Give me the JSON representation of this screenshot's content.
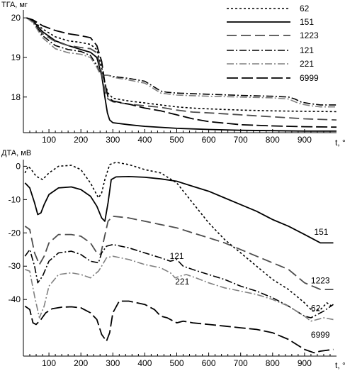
{
  "chart_data": [
    {
      "type": "line",
      "ylabel": "ТГА, мг",
      "xlabel": "t, °C",
      "xlim": [
        20,
        1000
      ],
      "ylim": [
        17.1,
        20.2
      ],
      "xticks": [
        100,
        200,
        300,
        400,
        500,
        600,
        700,
        800,
        900
      ],
      "yticks": [
        18,
        19,
        20
      ],
      "grid": false,
      "legend_position": "top-right",
      "series": [
        {
          "name": "62",
          "color": "#000000",
          "dash": "3,3",
          "width": 1.6,
          "x": [
            30,
            50,
            80,
            120,
            160,
            200,
            230,
            250,
            265,
            275,
            285,
            300,
            350,
            400,
            450,
            500,
            550,
            600,
            700,
            800,
            900,
            1000
          ],
          "y": [
            20.0,
            19.93,
            19.72,
            19.52,
            19.42,
            19.38,
            19.33,
            19.2,
            18.75,
            18.35,
            18.1,
            17.97,
            17.9,
            17.85,
            17.8,
            17.75,
            17.72,
            17.7,
            17.67,
            17.65,
            17.64,
            17.63
          ]
        },
        {
          "name": "151",
          "color": "#000000",
          "dash": "",
          "width": 1.8,
          "x": [
            30,
            50,
            80,
            120,
            160,
            200,
            230,
            250,
            265,
            275,
            283,
            290,
            300,
            350,
            400,
            500,
            600,
            700,
            800,
            900,
            1000
          ],
          "y": [
            20.0,
            19.92,
            19.65,
            19.42,
            19.3,
            19.2,
            19.13,
            19.0,
            18.55,
            18.0,
            17.6,
            17.42,
            17.35,
            17.3,
            17.26,
            17.21,
            17.18,
            17.16,
            17.15,
            17.14,
            17.14
          ]
        },
        {
          "name": "1223",
          "color": "#4d4d4d",
          "dash": "14,6",
          "width": 1.8,
          "x": [
            30,
            50,
            80,
            120,
            160,
            200,
            230,
            250,
            265,
            275,
            285,
            300,
            350,
            400,
            450,
            500,
            550,
            600,
            700,
            800,
            900,
            1000
          ],
          "y": [
            20.0,
            19.9,
            19.6,
            19.4,
            19.3,
            19.25,
            19.22,
            19.12,
            18.6,
            18.15,
            17.95,
            17.88,
            17.82,
            17.78,
            17.74,
            17.67,
            17.62,
            17.6,
            17.55,
            17.5,
            17.45,
            17.42
          ]
        },
        {
          "name": "121",
          "color": "#000000",
          "dash": "10,3,2,3",
          "width": 1.6,
          "x": [
            30,
            50,
            80,
            120,
            160,
            200,
            230,
            250,
            260,
            270,
            285,
            300,
            350,
            400,
            430,
            450,
            470,
            500,
            600,
            700,
            800,
            850,
            870,
            890,
            920,
            950,
            1000
          ],
          "y": [
            20.0,
            19.9,
            19.55,
            19.3,
            19.2,
            19.15,
            19.05,
            18.8,
            18.6,
            18.55,
            18.55,
            18.52,
            18.47,
            18.4,
            18.25,
            18.15,
            18.12,
            18.1,
            18.07,
            18.04,
            18.02,
            18.0,
            17.95,
            17.87,
            17.83,
            17.8,
            17.8
          ]
        },
        {
          "name": "221",
          "color": "#808080",
          "dash": "10,3,2,3",
          "width": 1.6,
          "x": [
            30,
            50,
            80,
            120,
            160,
            200,
            230,
            250,
            260,
            270,
            285,
            300,
            350,
            400,
            430,
            450,
            470,
            500,
            600,
            700,
            800,
            850,
            870,
            890,
            920,
            950,
            1000
          ],
          "y": [
            20.0,
            19.88,
            19.5,
            19.22,
            19.12,
            19.08,
            19.0,
            18.75,
            18.58,
            18.55,
            18.55,
            18.5,
            18.43,
            18.35,
            18.2,
            18.1,
            18.08,
            18.05,
            18.02,
            18.0,
            17.98,
            17.95,
            17.88,
            17.82,
            17.78,
            17.75,
            17.75
          ]
        },
        {
          "name": "6999",
          "color": "#000000",
          "dash": "16,5",
          "width": 1.8,
          "x": [
            30,
            50,
            80,
            120,
            160,
            200,
            230,
            250,
            265,
            275,
            285,
            300,
            350,
            400,
            450,
            500,
            550,
            600,
            700,
            800,
            900,
            1000
          ],
          "y": [
            20.0,
            19.95,
            19.8,
            19.68,
            19.6,
            19.55,
            19.5,
            19.3,
            18.9,
            18.35,
            18.0,
            17.9,
            17.82,
            17.72,
            17.65,
            17.55,
            17.45,
            17.38,
            17.3,
            17.27,
            17.25,
            17.24
          ]
        }
      ]
    },
    {
      "type": "line",
      "ylabel": "ДТА, мВ",
      "xlabel": "t, °C",
      "xlim": [
        20,
        1000
      ],
      "ylim": [
        -57,
        2
      ],
      "xticks": [
        100,
        200,
        300,
        400,
        500,
        600,
        700,
        800,
        900
      ],
      "yticks": [
        0,
        -10,
        -20,
        -30,
        -40
      ],
      "grid": false,
      "annotations": [
        {
          "text": "151",
          "x": 930,
          "y": -20.6
        },
        {
          "text": "1223",
          "x": 920,
          "y": -35.2
        },
        {
          "text": "62",
          "x": 920,
          "y": -43.5
        },
        {
          "text": "121",
          "x": 478,
          "y": -27.8
        },
        {
          "text": "221",
          "x": 495,
          "y": -35.5
        },
        {
          "text": "6999",
          "x": 920,
          "y": -51.5
        }
      ],
      "series": [
        {
          "name": "62",
          "color": "#000000",
          "dash": "3,3",
          "width": 1.6,
          "x": [
            25,
            35,
            45,
            60,
            80,
            100,
            130,
            170,
            200,
            230,
            255,
            265,
            275,
            290,
            310,
            350,
            400,
            450,
            500,
            550,
            600,
            650,
            700,
            750,
            800,
            850,
            900,
            925,
            950,
            970,
            985
          ],
          "y": [
            -2,
            0,
            -1,
            -3,
            -4,
            -2,
            0,
            0.3,
            -1,
            -5,
            -9.5,
            -8,
            -4,
            0.5,
            1.2,
            0.5,
            -1,
            -2,
            -5,
            -11,
            -17,
            -22,
            -26,
            -30,
            -34,
            -37,
            -41,
            -43.5,
            -43,
            -41,
            -42
          ]
        },
        {
          "name": "151",
          "color": "#000000",
          "dash": "",
          "width": 1.8,
          "x": [
            25,
            40,
            55,
            65,
            75,
            85,
            100,
            130,
            170,
            200,
            230,
            250,
            265,
            275,
            285,
            295,
            310,
            350,
            400,
            450,
            500,
            550,
            600,
            650,
            700,
            750,
            800,
            850,
            900,
            950,
            990
          ],
          "y": [
            -5,
            -6.5,
            -11,
            -14.5,
            -14,
            -11.5,
            -8.5,
            -6.5,
            -6.2,
            -7,
            -9,
            -12,
            -15.5,
            -16.5,
            -11,
            -4,
            -3.2,
            -3.1,
            -3.3,
            -3.8,
            -4.5,
            -6,
            -7.5,
            -9.5,
            -11.5,
            -13.5,
            -16,
            -18,
            -20.5,
            -23,
            -23
          ]
        },
        {
          "name": "1223",
          "color": "#4d4d4d",
          "dash": "14,6",
          "width": 1.8,
          "x": [
            25,
            40,
            55,
            70,
            85,
            100,
            130,
            170,
            200,
            230,
            250,
            262,
            272,
            285,
            300,
            350,
            400,
            450,
            500,
            550,
            600,
            650,
            700,
            750,
            800,
            850,
            900,
            950,
            990
          ],
          "y": [
            -18,
            -19,
            -26,
            -29.5,
            -27,
            -23,
            -20.5,
            -20.5,
            -21,
            -23,
            -26,
            -26.5,
            -22,
            -16.5,
            -15,
            -15.5,
            -16.5,
            -17.5,
            -18.5,
            -20,
            -21.5,
            -23,
            -25,
            -27,
            -29,
            -31,
            -35,
            -37,
            -37
          ]
        },
        {
          "name": "121",
          "color": "#000000",
          "dash": "10,3,2,3",
          "width": 1.6,
          "x": [
            25,
            40,
            55,
            65,
            80,
            100,
            130,
            170,
            200,
            230,
            255,
            265,
            280,
            300,
            350,
            400,
            450,
            480,
            500,
            510,
            520,
            550,
            600,
            650,
            700,
            750,
            800,
            850,
            900,
            920,
            940,
            960,
            990
          ],
          "y": [
            -27,
            -25,
            -30,
            -35,
            -33,
            -28.5,
            -26,
            -25.5,
            -26.5,
            -28.5,
            -29,
            -26,
            -24,
            -23.5,
            -24.5,
            -26,
            -27.5,
            -28.5,
            -28,
            -29,
            -30,
            -31,
            -32.5,
            -34,
            -36,
            -37.5,
            -39.5,
            -42,
            -45,
            -45.5,
            -44.5,
            -43.5,
            -41.5
          ]
        },
        {
          "name": "221",
          "color": "#808080",
          "dash": "10,3,2,3",
          "width": 1.6,
          "x": [
            25,
            40,
            55,
            70,
            85,
            100,
            130,
            170,
            200,
            230,
            255,
            265,
            280,
            300,
            350,
            400,
            450,
            480,
            495,
            510,
            530,
            560,
            600,
            650,
            700,
            750,
            800,
            850,
            900,
            920,
            940,
            960,
            990
          ],
          "y": [
            -31,
            -31.5,
            -39,
            -45.5,
            -42,
            -36,
            -32.5,
            -32,
            -32.5,
            -33.5,
            -31.5,
            -30,
            -27.5,
            -27,
            -28,
            -29.5,
            -30.5,
            -32,
            -33.5,
            -33,
            -32.5,
            -33.5,
            -35,
            -36.5,
            -37.5,
            -38.5,
            -40,
            -42,
            -45,
            -46.5,
            -46,
            -45.5,
            -46
          ]
        },
        {
          "name": "6999",
          "color": "#000000",
          "dash": "16,5",
          "width": 1.8,
          "x": [
            25,
            40,
            50,
            60,
            75,
            90,
            110,
            140,
            170,
            200,
            230,
            250,
            265,
            280,
            290,
            300,
            320,
            350,
            400,
            430,
            450,
            470,
            500,
            520,
            550,
            600,
            650,
            700,
            750,
            800,
            850,
            900,
            930,
            950,
            990
          ],
          "y": [
            -42,
            -43,
            -47,
            -47.5,
            -46,
            -44,
            -42.8,
            -42.3,
            -42.2,
            -42.5,
            -44,
            -46,
            -50.5,
            -52.5,
            -50,
            -44,
            -40.5,
            -40.5,
            -41.5,
            -43,
            -45,
            -45.5,
            -47,
            -46.5,
            -47,
            -47.5,
            -48,
            -48.5,
            -49,
            -50,
            -52,
            -55,
            -56,
            -55.5,
            -55
          ]
        }
      ]
    }
  ]
}
